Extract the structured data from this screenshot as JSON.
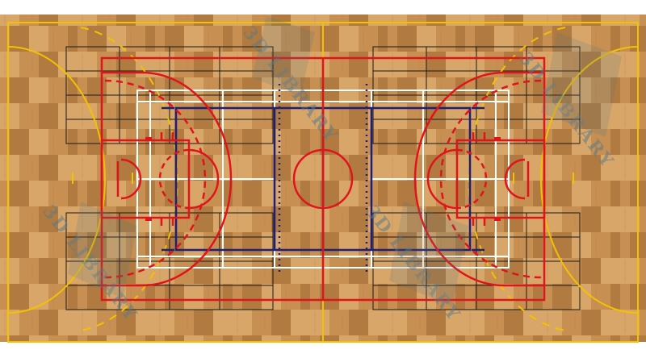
{
  "image": {
    "subject": "multi-sport court floor plan",
    "floor": {
      "material": "maple hardwood",
      "color_light": "#d9a66a",
      "color_mid": "#c78f52",
      "color_dark": "#b07a40"
    }
  },
  "line_colors": {
    "futsal": "#f2c200",
    "basketball": "#e0141b",
    "badminton": "#ffffff",
    "volleyball": "#1d1f7a",
    "tennis_grid": "#1a1a1a"
  },
  "watermark": {
    "text": "3D LIBRARY",
    "color": "#5a7a88"
  }
}
